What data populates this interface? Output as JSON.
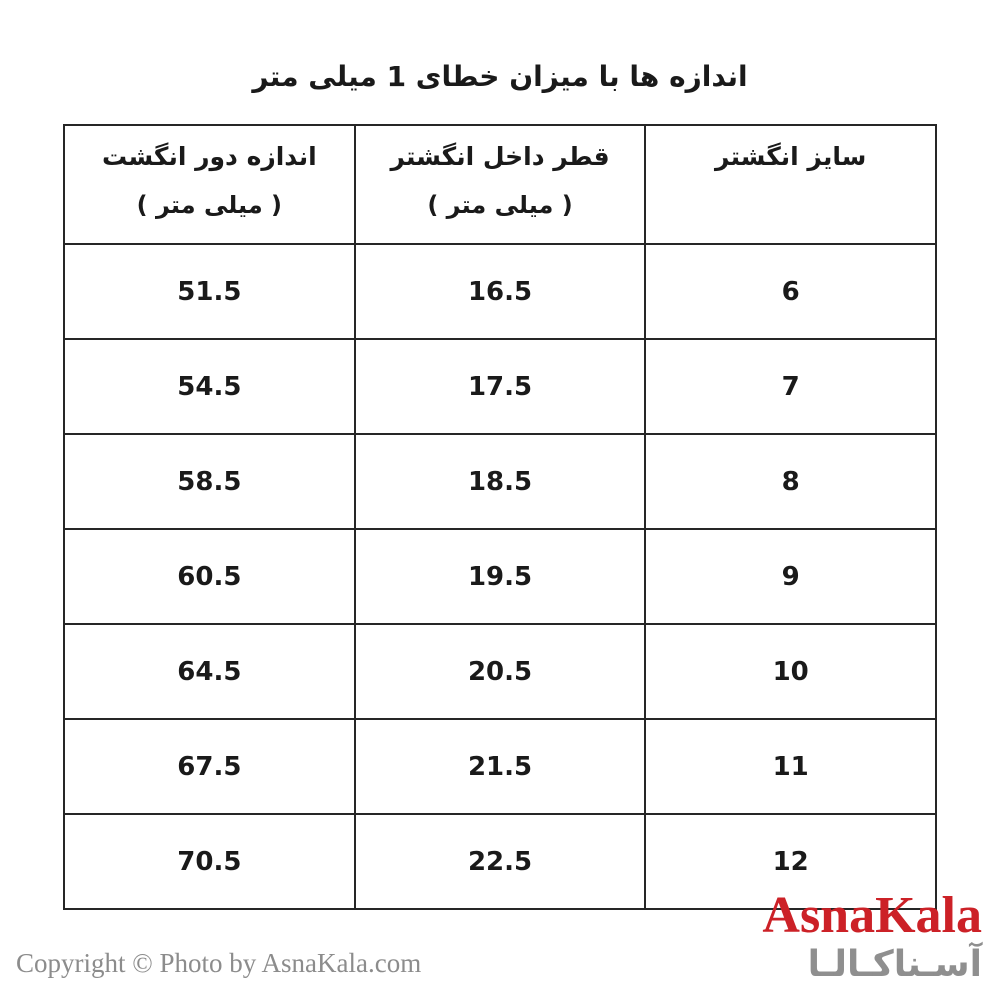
{
  "title": "اندازه ها با میزان خطای 1 میلی متر",
  "table": {
    "columns": [
      {
        "id": "size",
        "label": "سایز انگشتر",
        "sublabel": ""
      },
      {
        "id": "inner_diameter",
        "label": "قطر داخل انگشتر",
        "sublabel": "( میلی متر )"
      },
      {
        "id": "circumference",
        "label": "اندازه دور انگشت",
        "sublabel": "( میلی متر )"
      }
    ],
    "rows": [
      {
        "size": "6",
        "inner_diameter": "16.5",
        "circumference": "51.5"
      },
      {
        "size": "7",
        "inner_diameter": "17.5",
        "circumference": "54.5"
      },
      {
        "size": "8",
        "inner_diameter": "18.5",
        "circumference": "58.5"
      },
      {
        "size": "9",
        "inner_diameter": "19.5",
        "circumference": "60.5"
      },
      {
        "size": "10",
        "inner_diameter": "20.5",
        "circumference": "64.5"
      },
      {
        "size": "11",
        "inner_diameter": "21.5",
        "circumference": "67.5"
      },
      {
        "size": "12",
        "inner_diameter": "22.5",
        "circumference": "70.5"
      }
    ]
  },
  "chart_data": {
    "type": "table",
    "title": "اندازه ها با میزان خطای 1 میلی متر",
    "columns_rtl": [
      "سایز انگشتر",
      "قطر داخل انگشتر ( میلی متر )",
      "اندازه دور انگشت ( میلی متر )"
    ],
    "rows": [
      [
        6,
        16.5,
        51.5
      ],
      [
        7,
        17.5,
        54.5
      ],
      [
        8,
        18.5,
        58.5
      ],
      [
        9,
        19.5,
        60.5
      ],
      [
        10,
        20.5,
        64.5
      ],
      [
        11,
        21.5,
        67.5
      ],
      [
        12,
        22.5,
        70.5
      ]
    ]
  },
  "logo": {
    "latin": "AsnaKala",
    "persian": "آسـناکـالـا"
  },
  "footer": {
    "copyright": "Copyright © Photo by AsnaKala.com"
  },
  "colors": {
    "logo_red": "#cc2127",
    "logo_gray": "#8f8f8f",
    "copyright_gray": "#8c8c8c",
    "border": "#262626",
    "text": "#1a1a1a"
  }
}
